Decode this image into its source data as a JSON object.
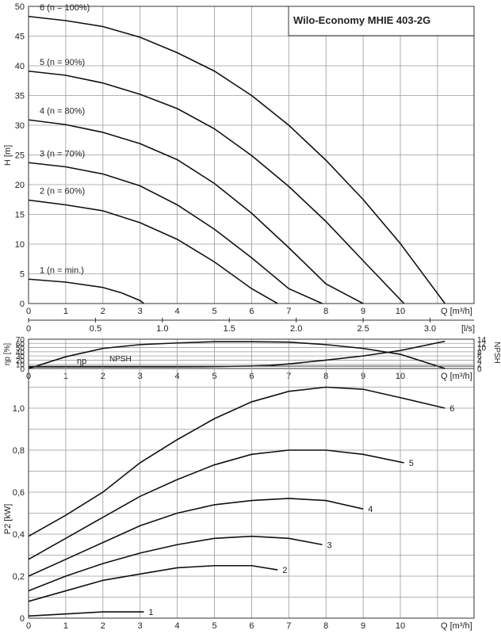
{
  "chart_data": [
    {
      "type": "line",
      "title": "Wilo-Economy MHIE 403-2G",
      "xlabel": "Q [m³/h]",
      "ylabel": "H [m]",
      "xlim": [
        0,
        12
      ],
      "ylim": [
        0,
        50
      ],
      "xticks": [
        0,
        1,
        2,
        3,
        4,
        5,
        6,
        7,
        8,
        9,
        10
      ],
      "yticks": [
        0,
        5,
        10,
        15,
        20,
        25,
        30,
        35,
        40,
        45,
        50
      ],
      "secondary_x": {
        "label": "[l/s]",
        "xlim": [
          0,
          3.333
        ],
        "ticks": [
          "0",
          "0.5",
          "1.0",
          "1.5",
          "2.0",
          "2.5",
          "3.0"
        ]
      },
      "grid": true,
      "series": [
        {
          "name": "1 (n = min.)",
          "x": [
            0,
            1,
            2,
            2.5,
            3,
            3.1
          ],
          "y": [
            4.1,
            3.6,
            2.7,
            1.8,
            0.5,
            0
          ]
        },
        {
          "name": "2 (n = 60%)",
          "x": [
            0,
            1,
            2,
            3,
            4,
            5,
            6,
            6.7
          ],
          "y": [
            17.4,
            16.6,
            15.6,
            13.6,
            10.8,
            7.0,
            2.5,
            0
          ]
        },
        {
          "name": "3 (n = 70%)",
          "x": [
            0,
            1,
            2,
            3,
            4,
            5,
            6,
            7,
            7.9
          ],
          "y": [
            23.7,
            23.0,
            21.8,
            19.8,
            16.6,
            12.5,
            7.7,
            2.5,
            0
          ]
        },
        {
          "name": "4 (n = 80%)",
          "x": [
            0,
            1,
            2,
            3,
            4,
            5,
            6,
            7,
            8,
            9
          ],
          "y": [
            30.9,
            30.1,
            28.8,
            26.9,
            24.2,
            20.2,
            15.2,
            9.4,
            3.3,
            0
          ]
        },
        {
          "name": "5 (n = 90%)",
          "x": [
            0,
            1,
            2,
            3,
            4,
            5,
            6,
            7,
            8,
            9,
            10.1
          ],
          "y": [
            39.1,
            38.4,
            37.1,
            35.2,
            32.8,
            29.4,
            24.9,
            19.7,
            13.8,
            7.2,
            0
          ]
        },
        {
          "name": "6 (n = 100%)",
          "x": [
            0,
            1,
            2,
            3,
            4,
            5,
            6,
            7,
            8,
            9,
            10,
            11.2
          ],
          "y": [
            48.3,
            47.6,
            46.6,
            44.8,
            42.2,
            39.1,
            35.0,
            30.0,
            24.1,
            17.5,
            10.1,
            0
          ]
        }
      ],
      "curve_labels": [
        "6 (n = 100%)",
        "5 (n = 90%)",
        "4 (n = 80%)",
        "3 (n = 70%)",
        "2 (n = 60%)",
        "1 (n = min.)"
      ]
    },
    {
      "type": "line",
      "xlabel": "Q [m³/h]",
      "ylabel": "ηp [%]",
      "ylabel_right": "NPSH",
      "xlim": [
        0,
        12
      ],
      "ylim": [
        0,
        70
      ],
      "ylim_right": [
        0,
        14
      ],
      "xticks": [
        0,
        1,
        2,
        3,
        4,
        5,
        6,
        7,
        8,
        9,
        10
      ],
      "yticks": [
        0,
        10,
        20,
        30,
        40,
        50,
        60,
        70
      ],
      "yticks_right": [
        0,
        2,
        4,
        6,
        8,
        10,
        12,
        14
      ],
      "grid": true,
      "series": [
        {
          "name": "ηp",
          "axis": "left",
          "x": [
            0,
            1,
            2,
            3,
            4,
            5,
            6,
            7,
            8,
            9,
            10,
            11.2
          ],
          "y": [
            0,
            28,
            48,
            57,
            61,
            64,
            64,
            63,
            57,
            48,
            34,
            0
          ]
        },
        {
          "name": "NPSH",
          "axis": "right",
          "x": [
            0,
            1,
            2,
            3,
            4,
            5,
            6,
            6.5,
            7,
            8,
            9,
            10,
            11.2
          ],
          "y": [
            0.8,
            0.8,
            0.8,
            0.8,
            0.8,
            0.9,
            1.2,
            1.5,
            2.2,
            4.0,
            6.0,
            8.6,
            13.0
          ]
        }
      ],
      "curve_labels": [
        "ηp",
        "NPSH"
      ]
    },
    {
      "type": "line",
      "xlabel": "Q [m³/h]",
      "ylabel": "P2 [kW]",
      "xlim": [
        0,
        12
      ],
      "ylim": [
        0,
        1.2
      ],
      "xticks": [
        0,
        1,
        2,
        3,
        4,
        5,
        6,
        7,
        8,
        9,
        10
      ],
      "yticks": [
        "0",
        "0,2",
        "0,4",
        "0,6",
        "0,8",
        "1,0"
      ],
      "grid": true,
      "series": [
        {
          "name": "1",
          "x": [
            0,
            1,
            2,
            3.1
          ],
          "y": [
            0.01,
            0.02,
            0.03,
            0.03
          ]
        },
        {
          "name": "2",
          "x": [
            0,
            1,
            2,
            3,
            4,
            5,
            6,
            6.7
          ],
          "y": [
            0.08,
            0.13,
            0.18,
            0.21,
            0.24,
            0.25,
            0.25,
            0.23
          ]
        },
        {
          "name": "3",
          "x": [
            0,
            1,
            2,
            3,
            4,
            5,
            6,
            7,
            7.9
          ],
          "y": [
            0.13,
            0.2,
            0.26,
            0.31,
            0.35,
            0.38,
            0.39,
            0.38,
            0.35
          ]
        },
        {
          "name": "4",
          "x": [
            0,
            1,
            2,
            3,
            4,
            5,
            6,
            7,
            8,
            9
          ],
          "y": [
            0.2,
            0.28,
            0.36,
            0.44,
            0.5,
            0.54,
            0.56,
            0.57,
            0.56,
            0.52
          ]
        },
        {
          "name": "5",
          "x": [
            0,
            1,
            2,
            3,
            4,
            5,
            6,
            7,
            8,
            9,
            10.1
          ],
          "y": [
            0.28,
            0.38,
            0.48,
            0.58,
            0.66,
            0.73,
            0.78,
            0.8,
            0.8,
            0.78,
            0.74
          ]
        },
        {
          "name": "6",
          "x": [
            0,
            1,
            2,
            3,
            4,
            5,
            6,
            7,
            8,
            9,
            10,
            11.2
          ],
          "y": [
            0.39,
            0.49,
            0.6,
            0.74,
            0.85,
            0.95,
            1.03,
            1.08,
            1.1,
            1.09,
            1.05,
            1.0
          ]
        }
      ],
      "curve_labels": [
        "6",
        "5",
        "4",
        "3",
        "2",
        "1"
      ]
    }
  ]
}
